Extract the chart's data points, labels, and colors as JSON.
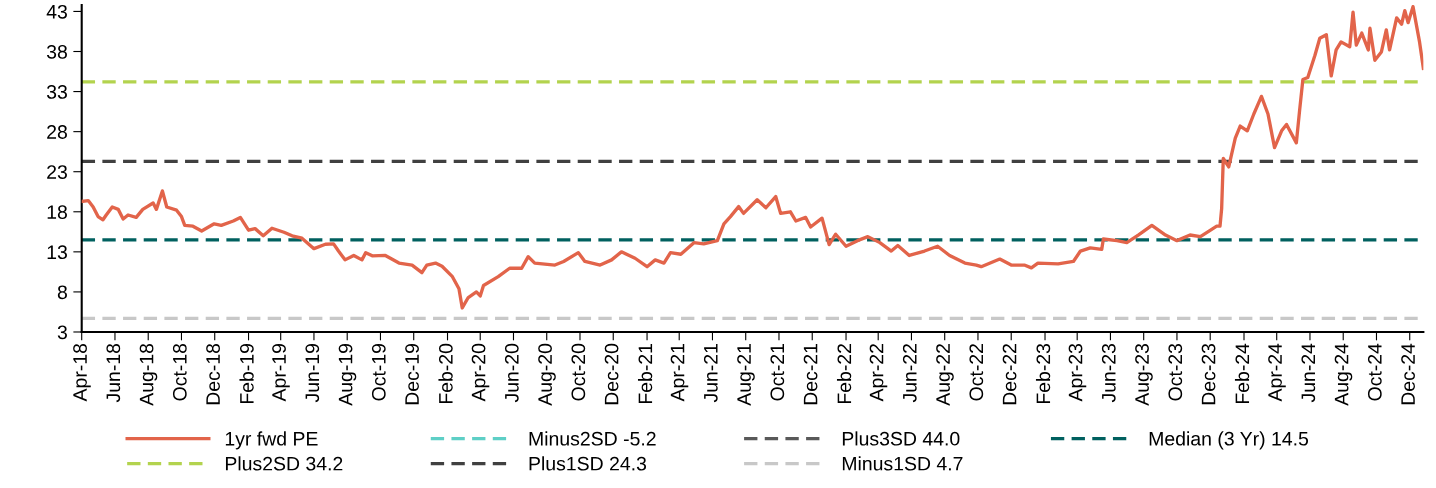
{
  "chart_data": {
    "type": "line",
    "x": [
      "2018-04-01",
      "2018-04-13",
      "2018-04-22",
      "2018-05-01",
      "2018-05-10",
      "2018-05-16",
      "2018-05-27",
      "2018-06-07",
      "2018-06-16",
      "2018-06-25",
      "2018-07-10",
      "2018-07-22",
      "2018-08-10",
      "2018-08-16",
      "2018-08-27",
      "2018-09-04",
      "2018-09-22",
      "2018-10-01",
      "2018-10-07",
      "2018-10-22",
      "2018-11-07",
      "2018-11-30",
      "2018-12-13",
      "2019-01-04",
      "2019-01-17",
      "2019-02-01",
      "2019-02-13",
      "2019-02-28",
      "2019-03-16",
      "2019-04-07",
      "2019-04-22",
      "2019-05-10",
      "2019-06-01",
      "2019-06-22",
      "2019-07-07",
      "2019-07-16",
      "2019-07-28",
      "2019-08-13",
      "2019-08-28",
      "2019-09-04",
      "2019-09-16",
      "2019-10-10",
      "2019-11-04",
      "2019-11-28",
      "2019-12-16",
      "2019-12-25",
      "2020-01-10",
      "2020-01-22",
      "2020-02-10",
      "2020-02-22",
      "2020-02-28",
      "2020-03-10",
      "2020-03-25",
      "2020-04-01",
      "2020-04-07",
      "2020-05-04",
      "2020-05-25",
      "2020-06-16",
      "2020-06-28",
      "2020-07-10",
      "2020-08-16",
      "2020-09-01",
      "2020-09-28",
      "2020-10-10",
      "2020-11-07",
      "2020-11-28",
      "2020-12-16",
      "2021-01-10",
      "2021-02-01",
      "2021-02-16",
      "2021-03-04",
      "2021-03-16",
      "2021-04-04",
      "2021-04-28",
      "2021-05-16",
      "2021-06-10",
      "2021-06-22",
      "2021-07-04",
      "2021-07-19",
      "2021-07-28",
      "2021-08-22",
      "2021-09-07",
      "2021-09-25",
      "2021-10-04",
      "2021-10-22",
      "2021-11-01",
      "2021-11-19",
      "2021-11-28",
      "2021-12-19",
      "2022-01-01",
      "2022-01-13",
      "2022-02-01",
      "2022-02-22",
      "2022-03-13",
      "2022-04-04",
      "2022-04-25",
      "2022-05-07",
      "2022-05-28",
      "2022-06-25",
      "2022-07-19",
      "2022-08-10",
      "2022-09-07",
      "2022-09-28",
      "2022-10-07",
      "2022-11-10",
      "2022-12-01",
      "2022-12-25",
      "2023-01-07",
      "2023-01-19",
      "2023-02-25",
      "2023-03-25",
      "2023-04-07",
      "2023-04-25",
      "2023-05-16",
      "2023-05-19",
      "2023-06-13",
      "2023-07-01",
      "2023-07-22",
      "2023-08-16",
      "2023-09-10",
      "2023-10-01",
      "2023-10-25",
      "2023-11-13",
      "2023-12-13",
      "2023-12-19",
      "2023-12-22",
      "2023-12-25",
      "2024-01-04",
      "2024-01-16",
      "2024-01-25",
      "2024-02-07",
      "2024-02-19",
      "2024-03-04",
      "2024-03-16",
      "2024-03-28",
      "2024-04-10",
      "2024-04-19",
      "2024-05-07",
      "2024-05-13",
      "2024-05-19",
      "2024-05-28",
      "2024-06-10",
      "2024-06-19",
      "2024-07-01",
      "2024-07-10",
      "2024-07-19",
      "2024-07-28",
      "2024-08-13",
      "2024-08-19",
      "2024-08-25",
      "2024-09-04",
      "2024-09-16",
      "2024-09-19",
      "2024-09-28",
      "2024-10-10",
      "2024-10-19",
      "2024-10-25",
      "2024-11-07",
      "2024-11-16",
      "2024-11-22",
      "2024-11-28",
      "2024-12-07",
      "2024-12-19",
      "2024-12-26"
    ],
    "series": [
      {
        "name": "1yr fwd PE",
        "color": "#e2644a",
        "line_style": "solid",
        "values": [
          19.3,
          19.4,
          18.6,
          17.4,
          17.0,
          17.6,
          18.6,
          18.3,
          17.1,
          17.6,
          17.3,
          18.3,
          19.1,
          18.3,
          20.6,
          18.6,
          18.2,
          17.4,
          16.3,
          16.2,
          15.6,
          16.5,
          16.3,
          16.85,
          17.3,
          15.7,
          15.9,
          15.0,
          15.95,
          15.45,
          15.0,
          14.7,
          13.4,
          13.95,
          14.0,
          13.1,
          12.0,
          12.55,
          12.0,
          12.9,
          12.5,
          12.55,
          11.6,
          11.35,
          10.4,
          11.35,
          11.6,
          11.2,
          9.9,
          8.4,
          6.0,
          7.3,
          8.0,
          7.5,
          8.8,
          9.9,
          10.95,
          10.95,
          12.4,
          11.6,
          11.35,
          11.8,
          12.9,
          11.8,
          11.35,
          12.0,
          13.0,
          12.2,
          11.15,
          12.0,
          11.6,
          12.9,
          12.7,
          14.15,
          14.0,
          14.4,
          16.5,
          17.4,
          18.65,
          17.8,
          19.5,
          18.5,
          19.9,
          17.8,
          18.0,
          16.85,
          17.3,
          16.1,
          17.2,
          13.9,
          15.2,
          13.7,
          14.4,
          14.9,
          14.15,
          13.1,
          13.8,
          12.55,
          13.1,
          13.7,
          12.55,
          11.6,
          11.35,
          11.15,
          12.1,
          11.35,
          11.35,
          11.0,
          11.6,
          11.5,
          11.8,
          13.1,
          13.5,
          13.3,
          14.6,
          14.4,
          14.15,
          15.1,
          16.3,
          15.1,
          14.4,
          15.1,
          14.9,
          16.2,
          16.2,
          18.4,
          24.65,
          23.6,
          27.2,
          28.7,
          28.1,
          30.2,
          32.4,
          30.2,
          26.0,
          28.1,
          28.9,
          26.6,
          30.65,
          34.5,
          34.75,
          37.5,
          39.65,
          40.1,
          34.95,
          38.2,
          39.2,
          38.6,
          42.9,
          38.8,
          40.3,
          38.2,
          40.9,
          36.9,
          37.95,
          40.7,
          38.2,
          42.2,
          41.4,
          43.1,
          41.6,
          43.6,
          39.2,
          35.9
        ]
      },
      {
        "name": "Minus2SD -5.2",
        "color": "#5ecfc6",
        "line_style": "dashed",
        "values": [
          null,
          null,
          null,
          null,
          null,
          null,
          null,
          null,
          null,
          null,
          null,
          null,
          null,
          null,
          null,
          null,
          null,
          null,
          null,
          null,
          null,
          null,
          null,
          null,
          null,
          null,
          null,
          null,
          null,
          null,
          null,
          null,
          null,
          null,
          null,
          null,
          null,
          null,
          null,
          null,
          null,
          null,
          null,
          null,
          null,
          null,
          null,
          null,
          null,
          null,
          null,
          null,
          null,
          null,
          null,
          null,
          null,
          null,
          null,
          null,
          null,
          null,
          null,
          null,
          null,
          null,
          null,
          null,
          null,
          null,
          null,
          null,
          null,
          null,
          null,
          null,
          null,
          null,
          null,
          null,
          null,
          null,
          null,
          null,
          null,
          null,
          null,
          null,
          null,
          null,
          null,
          null,
          null,
          null,
          null,
          null,
          null,
          null,
          null,
          null,
          null,
          null,
          null,
          null,
          null,
          null,
          null,
          null,
          null,
          null,
          null,
          null,
          null,
          null,
          null,
          null,
          null,
          null,
          null,
          null,
          null,
          null,
          null,
          null,
          null,
          null,
          null,
          null,
          null,
          null,
          null,
          null,
          null,
          null,
          null,
          null,
          null,
          null,
          null,
          null,
          null,
          null,
          null,
          null,
          null,
          null,
          null,
          null,
          null,
          null,
          null,
          null,
          null,
          null,
          null,
          null,
          null,
          null,
          null,
          null,
          null,
          null,
          null,
          null
        ]
      },
      {
        "name": "Plus3SD 44.0",
        "color": "#595959",
        "line_style": "dashed",
        "values": [
          null,
          null,
          null,
          null,
          null,
          null,
          null,
          null,
          null,
          null,
          null,
          null,
          null,
          null,
          null,
          null,
          null,
          null,
          null,
          null,
          null,
          null,
          null,
          null,
          null,
          null,
          null,
          null,
          null,
          null,
          null,
          null,
          null,
          null,
          null,
          null,
          null,
          null,
          null,
          null,
          null,
          null,
          null,
          null,
          null,
          null,
          null,
          null,
          null,
          null,
          null,
          null,
          null,
          null,
          null,
          null,
          null,
          null,
          null,
          null,
          null,
          null,
          null,
          null,
          null,
          null,
          null,
          null,
          null,
          null,
          null,
          null,
          null,
          null,
          null,
          null,
          null,
          null,
          null,
          null,
          null,
          null,
          null,
          null,
          null,
          null,
          null,
          null,
          null,
          null,
          null,
          null,
          null,
          null,
          null,
          null,
          null,
          null,
          null,
          null,
          null,
          null,
          null,
          null,
          null,
          null,
          null,
          null,
          null,
          null,
          null,
          null,
          null,
          null,
          null,
          null,
          null,
          null,
          null,
          null,
          null,
          null,
          null,
          null,
          null,
          null,
          null,
          null,
          null,
          null,
          null,
          null,
          null,
          null,
          null,
          null,
          null,
          null,
          null,
          null,
          null,
          null,
          null,
          null,
          null,
          null,
          null,
          null,
          null,
          null,
          null,
          null,
          null,
          null,
          null,
          null,
          null,
          null,
          null,
          null,
          null,
          null,
          null,
          null
        ]
      }
    ],
    "ref_lines": [
      {
        "axis": "y",
        "value": 14.5,
        "label": "Median (3 Yr) 14.5",
        "color": "#00605f",
        "line_style": "dashed"
      },
      {
        "axis": "y",
        "value": 34.2,
        "label": "Plus2SD 34.2",
        "color": "#b3d34e",
        "line_style": "dashed"
      },
      {
        "axis": "y",
        "value": 24.3,
        "label": "Plus1SD 24.3",
        "color": "#404040",
        "line_style": "dashed"
      },
      {
        "axis": "y",
        "value": 4.7,
        "label": "Minus1SD 4.7",
        "color": "#c8c8c8",
        "line_style": "dashed"
      }
    ],
    "xlim": [
      "2018-04-01",
      "2024-12-26"
    ],
    "xticks": [
      {
        "value": "2018-04-01",
        "label": "Apr-18"
      },
      {
        "value": "2018-06-01",
        "label": "Jun-18"
      },
      {
        "value": "2018-08-01",
        "label": "Aug-18"
      },
      {
        "value": "2018-10-01",
        "label": "Oct-18"
      },
      {
        "value": "2018-12-01",
        "label": "Dec-18"
      },
      {
        "value": "2019-02-01",
        "label": "Feb-19"
      },
      {
        "value": "2019-04-01",
        "label": "Apr-19"
      },
      {
        "value": "2019-06-01",
        "label": "Jun-19"
      },
      {
        "value": "2019-08-01",
        "label": "Aug-19"
      },
      {
        "value": "2019-10-01",
        "label": "Oct-19"
      },
      {
        "value": "2019-12-01",
        "label": "Dec-19"
      },
      {
        "value": "2020-02-01",
        "label": "Feb-20"
      },
      {
        "value": "2020-04-01",
        "label": "Apr-20"
      },
      {
        "value": "2020-06-01",
        "label": "Jun-20"
      },
      {
        "value": "2020-08-01",
        "label": "Aug-20"
      },
      {
        "value": "2020-10-01",
        "label": "Oct-20"
      },
      {
        "value": "2020-12-01",
        "label": "Dec-20"
      },
      {
        "value": "2021-02-01",
        "label": "Feb-21"
      },
      {
        "value": "2021-04-01",
        "label": "Apr-21"
      },
      {
        "value": "2021-06-01",
        "label": "Jun-21"
      },
      {
        "value": "2021-08-01",
        "label": "Aug-21"
      },
      {
        "value": "2021-10-01",
        "label": "Oct-21"
      },
      {
        "value": "2021-12-01",
        "label": "Dec-21"
      },
      {
        "value": "2022-02-01",
        "label": "Feb-22"
      },
      {
        "value": "2022-04-01",
        "label": "Apr-22"
      },
      {
        "value": "2022-06-01",
        "label": "Jun-22"
      },
      {
        "value": "2022-08-01",
        "label": "Aug-22"
      },
      {
        "value": "2022-10-01",
        "label": "Oct-22"
      },
      {
        "value": "2022-12-01",
        "label": "Dec-22"
      },
      {
        "value": "2023-02-01",
        "label": "Feb-23"
      },
      {
        "value": "2023-04-01",
        "label": "Apr-23"
      },
      {
        "value": "2023-06-01",
        "label": "Jun-23"
      },
      {
        "value": "2023-08-01",
        "label": "Aug-23"
      },
      {
        "value": "2023-10-01",
        "label": "Oct-23"
      },
      {
        "value": "2023-12-01",
        "label": "Dec-23"
      },
      {
        "value": "2024-02-01",
        "label": "Feb-24"
      },
      {
        "value": "2024-04-01",
        "label": "Apr-24"
      },
      {
        "value": "2024-06-01",
        "label": "Jun-24"
      },
      {
        "value": "2024-08-01",
        "label": "Aug-24"
      },
      {
        "value": "2024-10-01",
        "label": "Oct-24"
      },
      {
        "value": "2024-12-01",
        "label": "Dec-24"
      }
    ],
    "ylim": [
      3,
      43.8
    ],
    "yticks": [
      3,
      8,
      13,
      18,
      23,
      28,
      33,
      38,
      43
    ],
    "grid": false,
    "legend": "bottom",
    "marker": "none"
  }
}
